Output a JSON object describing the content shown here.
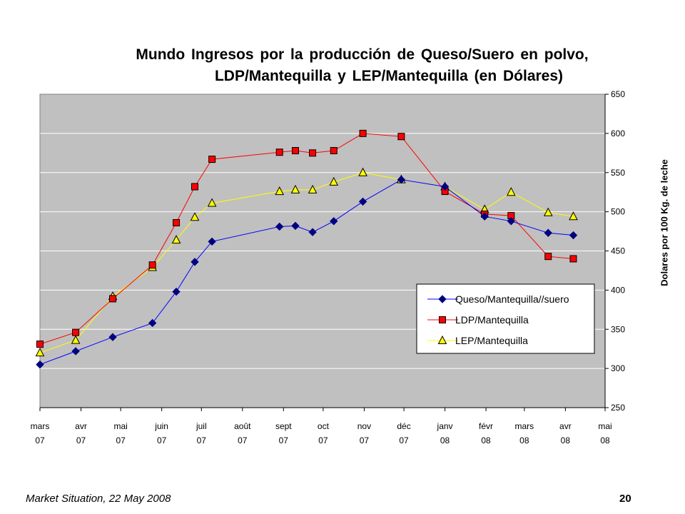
{
  "chart_data": {
    "type": "line",
    "title_line1": "Mundo  Ingresos  por la producción de Queso/Suero en polvo,",
    "title_line2": "LDP/Mantequilla y  LEP/Mantequilla (en Dólares)",
    "ylabel": "Dolares  por 100 Kg. de leche",
    "ylim": [
      250,
      650
    ],
    "yticks": [
      250,
      300,
      350,
      400,
      450,
      500,
      550,
      600,
      650
    ],
    "grid": true,
    "legend_position": "bottom-right",
    "x_axis": {
      "start": "2007-03",
      "end": "2008-05",
      "ticks": [
        {
          "date": "2007-03",
          "top": "mars",
          "bottom": "07"
        },
        {
          "date": "2007-04",
          "top": "avr",
          "bottom": "07"
        },
        {
          "date": "2007-05",
          "top": "mai",
          "bottom": "07"
        },
        {
          "date": "2007-06",
          "top": "juin",
          "bottom": "07"
        },
        {
          "date": "2007-07",
          "top": "juil",
          "bottom": "07"
        },
        {
          "date": "2007-08",
          "top": "août",
          "bottom": "07"
        },
        {
          "date": "2007-09",
          "top": "sept",
          "bottom": "07"
        },
        {
          "date": "2007-10",
          "top": "oct",
          "bottom": "07"
        },
        {
          "date": "2007-11",
          "top": "nov",
          "bottom": "07"
        },
        {
          "date": "2007-12",
          "top": "déc",
          "bottom": "07"
        },
        {
          "date": "2008-01",
          "top": "janv",
          "bottom": "08"
        },
        {
          "date": "2008-02",
          "top": "févr",
          "bottom": "08"
        },
        {
          "date": "2008-03",
          "top": "mars",
          "bottom": "08"
        },
        {
          "date": "2008-04",
          "top": "avr",
          "bottom": "08"
        },
        {
          "date": "2008-05",
          "top": "mai",
          "bottom": "08"
        }
      ]
    },
    "series": [
      {
        "name": "Queso/Mantequilla//suero",
        "color": "#0000ff",
        "marker": "diamond",
        "x": [
          "2007-03-01",
          "2007-03-28",
          "2007-04-25",
          "2007-05-25",
          "2007-06-12",
          "2007-06-26",
          "2007-07-09",
          "2007-08-29",
          "2007-09-10",
          "2007-09-23",
          "2007-10-09",
          "2007-10-31",
          "2007-11-29",
          "2008-01-01",
          "2008-01-31",
          "2008-02-20",
          "2008-03-19",
          "2008-04-07"
        ],
        "values": [
          305,
          322,
          340,
          358,
          398,
          436,
          462,
          481,
          482,
          474,
          488,
          513,
          541,
          532,
          494,
          488,
          473,
          470
        ]
      },
      {
        "name": "LDP/Mantequilla",
        "color": "#ff0000",
        "marker": "square",
        "x": [
          "2007-03-01",
          "2007-03-28",
          "2007-04-25",
          "2007-05-25",
          "2007-06-12",
          "2007-06-26",
          "2007-07-09",
          "2007-08-29",
          "2007-09-10",
          "2007-09-23",
          "2007-10-09",
          "2007-10-31",
          "2007-11-29",
          "2008-01-01",
          "2008-01-31",
          "2008-02-20",
          "2008-03-19",
          "2008-04-07"
        ],
        "values": [
          331,
          346,
          389,
          432,
          486,
          532,
          567,
          576,
          578,
          575,
          578,
          600,
          596,
          526,
          497,
          495,
          443,
          440
        ]
      },
      {
        "name": "LEP/Mantequilla",
        "color": "#ffff00",
        "marker": "triangle",
        "x": [
          "2007-03-01",
          "2007-03-28",
          "2007-04-25",
          "2007-05-25",
          "2007-06-12",
          "2007-06-26",
          "2007-07-09",
          "2007-08-29",
          "2007-09-10",
          "2007-09-23",
          "2007-10-09",
          "2007-10-31",
          "2007-11-29",
          "2008-01-01",
          "2008-01-31",
          "2008-02-20",
          "2008-03-19",
          "2008-04-07"
        ],
        "values": [
          320,
          336,
          392,
          429,
          464,
          493,
          511,
          526,
          528,
          528,
          538,
          550,
          541,
          532,
          503,
          525,
          499,
          494
        ]
      }
    ]
  },
  "footer": {
    "left": "Market Situation, 22 May 2008",
    "right": "20"
  }
}
